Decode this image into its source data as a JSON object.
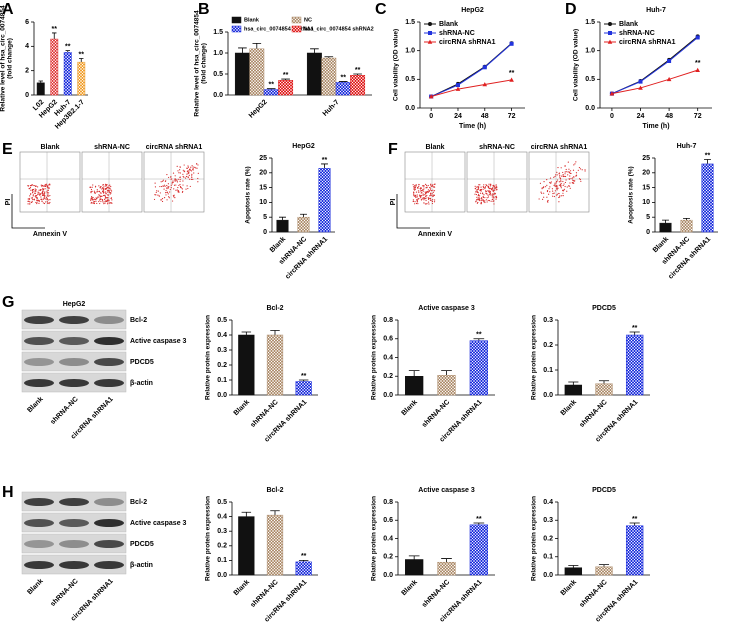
{
  "panel_letters": [
    "A",
    "B",
    "C",
    "D",
    "E",
    "F",
    "G",
    "H"
  ],
  "flow_panels": [
    {
      "labels": [
        "Blank",
        "shRNA-NC",
        "circRNA shRNA1"
      ],
      "x_label": "Annexin V",
      "y_label": "PI"
    },
    {
      "labels": [
        "Blank",
        "shRNA-NC",
        "circRNA shRNA1"
      ],
      "x_label": "Annexin V",
      "y_label": "PI"
    }
  ],
  "blots": [
    {
      "title": "HepG2",
      "proteins": [
        "Bcl-2",
        "Active caspase 3",
        "PDCD5",
        "β-actin"
      ],
      "lanes": [
        "Blank",
        "shRNA-NC",
        "circRNA shRNA1"
      ]
    },
    {
      "proteins": [
        "Bcl-2",
        "Active caspase 3",
        "PDCD5",
        "β-actin"
      ],
      "lanes": [
        "Blank",
        "shRNA-NC",
        "circRNA shRNA1"
      ]
    }
  ],
  "chart_data": [
    {
      "type": "bar",
      "y_label": [
        "Relative level of hsa_circ_0074854",
        "(fold change)"
      ],
      "categories": [
        "L02",
        "HepG2",
        "Huh-7",
        "Hep3B2.1-7"
      ],
      "values": [
        1.0,
        4.6,
        3.5,
        2.7
      ],
      "errors": [
        0.15,
        0.5,
        0.15,
        0.3
      ],
      "colors": [
        "#111111",
        "#e04040",
        "#2233dd",
        "#f0a030"
      ],
      "ylim": [
        0,
        6
      ],
      "yticks": [
        0,
        2,
        4,
        6
      ],
      "annotations": [
        {
          "category": "HepG2",
          "text": "**"
        },
        {
          "category": "Huh-7",
          "text": "**"
        },
        {
          "category": "Hep3B2.1-7",
          "text": "**"
        }
      ]
    },
    {
      "type": "bar",
      "y_label": [
        "Relative level of hsa_circ_0074854",
        "(fold change)"
      ],
      "categories": [
        "HepG2",
        "Huh-7"
      ],
      "series": [
        {
          "name": "Blank",
          "color": "#111111",
          "values": [
            1.0,
            1.0
          ],
          "errors": [
            0.12,
            0.1
          ]
        },
        {
          "name": "NC",
          "color": "#b09070",
          "values": [
            1.1,
            0.88
          ],
          "errors": [
            0.13,
            0.03
          ]
        },
        {
          "name": "hsa_circ_0074854 shRNA1",
          "color": "#2233dd",
          "values": [
            0.13,
            0.3
          ],
          "errors": [
            0.02,
            0.02
          ]
        },
        {
          "name": "hsa_circ_0074854 shRNA2",
          "color": "#e02020",
          "values": [
            0.35,
            0.47
          ],
          "errors": [
            0.03,
            0.03
          ]
        }
      ],
      "ylim": [
        0,
        1.5
      ],
      "yticks": [
        {
          "value": 0,
          "label": "0.0"
        },
        0.5,
        {
          "value": 1,
          "label": "1.0"
        },
        1.5
      ],
      "annotations": [
        {
          "category": "HepG2",
          "series": "hsa_circ_0074854 shRNA1",
          "text": "**"
        },
        {
          "category": "HepG2",
          "series": "hsa_circ_0074854 shRNA2",
          "text": "**"
        },
        {
          "category": "Huh-7",
          "series": "hsa_circ_0074854 shRNA1",
          "text": "**"
        },
        {
          "category": "Huh-7",
          "series": "hsa_circ_0074854 shRNA2",
          "text": "**"
        }
      ]
    },
    {
      "type": "line",
      "title": "HepG2",
      "x_label": "Time (h)",
      "y_label": "Cell viability (OD value)",
      "x": [
        0,
        24,
        48,
        72
      ],
      "xlim": [
        -10,
        84
      ],
      "xticks": [
        0,
        24,
        48,
        72
      ],
      "ylim": [
        0,
        1.5
      ],
      "yticks": [
        {
          "value": 0,
          "label": "0.0"
        },
        0.5,
        {
          "value": 1,
          "label": "1.0"
        },
        1.5
      ],
      "series": [
        {
          "name": "Blank",
          "color": "#111111",
          "marker": "circle",
          "values": [
            0.2,
            0.42,
            0.72,
            1.13
          ]
        },
        {
          "name": "shRNA-NC",
          "color": "#2233dd",
          "marker": "square",
          "values": [
            0.2,
            0.4,
            0.71,
            1.12
          ]
        },
        {
          "name": "circRNA shRNA1",
          "color": "#e02020",
          "marker": "triangle",
          "values": [
            0.2,
            0.33,
            0.41,
            0.49
          ]
        }
      ],
      "annotations": [
        {
          "x": 72,
          "series": "circRNA shRNA1",
          "text": "**"
        }
      ]
    },
    {
      "type": "line",
      "title": "Huh-7",
      "x_label": "Time (h)",
      "y_label": "Cell viability (OD value)",
      "x": [
        0,
        24,
        48,
        72
      ],
      "xlim": [
        -10,
        84
      ],
      "xticks": [
        0,
        24,
        48,
        72
      ],
      "ylim": [
        0,
        1.5
      ],
      "yticks": [
        {
          "value": 0,
          "label": "0.0"
        },
        0.5,
        {
          "value": 1,
          "label": "1.0"
        },
        1.5
      ],
      "series": [
        {
          "name": "Blank",
          "color": "#111111",
          "marker": "circle",
          "values": [
            0.25,
            0.47,
            0.84,
            1.25
          ]
        },
        {
          "name": "shRNA-NC",
          "color": "#2233dd",
          "marker": "square",
          "values": [
            0.25,
            0.46,
            0.82,
            1.23
          ]
        },
        {
          "name": "circRNA shRNA1",
          "color": "#e02020",
          "marker": "triangle",
          "values": [
            0.25,
            0.35,
            0.5,
            0.66
          ]
        }
      ],
      "annotations": [
        {
          "x": 72,
          "series": "circRNA shRNA1",
          "text": "**"
        }
      ]
    },
    {
      "type": "bar",
      "title": "HepG2",
      "y_label": "Apoptosis rate (%)",
      "categories": [
        "Blank",
        "shRNA-NC",
        "circRNA shRNA1"
      ],
      "values": [
        4,
        5,
        21.5
      ],
      "errors": [
        1,
        1,
        1.5
      ],
      "colors": [
        "#111111",
        "#b09070",
        "#2233dd"
      ],
      "ylim": [
        0,
        25
      ],
      "yticks": [
        0,
        5,
        10,
        15,
        20,
        25
      ],
      "annotations": [
        {
          "category": "circRNA shRNA1",
          "text": "**"
        }
      ]
    },
    {
      "type": "bar",
      "title": "Huh-7",
      "y_label": "Apoptosis rate (%)",
      "categories": [
        "Blank",
        "shRNA-NC",
        "circRNA shRNA1"
      ],
      "values": [
        3,
        4,
        23
      ],
      "errors": [
        1,
        0.6,
        1.5
      ],
      "colors": [
        "#111111",
        "#b09070",
        "#2233dd"
      ],
      "ylim": [
        0,
        25
      ],
      "yticks": [
        0,
        5,
        10,
        15,
        20,
        25
      ],
      "annotations": [
        {
          "category": "circRNA shRNA1",
          "text": "**"
        }
      ]
    },
    {
      "type": "bar",
      "title": "Bcl-2",
      "y_label": "Relative protein expression",
      "categories": [
        "Blank",
        "shRNA-NC",
        "circRNA shRNA1"
      ],
      "values": [
        0.4,
        0.4,
        0.09
      ],
      "errors": [
        0.02,
        0.03,
        0.01
      ],
      "colors": [
        "#111111",
        "#b09070",
        "#2233dd"
      ],
      "ylim": [
        0,
        0.5
      ],
      "yticks": [
        {
          "value": 0,
          "label": "0.0"
        },
        0.1,
        0.2,
        0.3,
        0.4,
        0.5
      ],
      "annotations": [
        {
          "category": "circRNA shRNA1",
          "text": "**"
        }
      ]
    },
    {
      "type": "bar",
      "title": "Active caspase 3",
      "y_label": "Relative protein expression",
      "categories": [
        "Blank",
        "shRNA-NC",
        "circRNA shRNA1"
      ],
      "values": [
        0.2,
        0.21,
        0.58
      ],
      "errors": [
        0.06,
        0.05,
        0.02
      ],
      "colors": [
        "#111111",
        "#b09070",
        "#2233dd"
      ],
      "ylim": [
        0,
        0.8
      ],
      "yticks": [
        {
          "value": 0,
          "label": "0.0"
        },
        0.2,
        0.4,
        0.6,
        0.8
      ],
      "annotations": [
        {
          "category": "circRNA shRNA1",
          "text": "**"
        }
      ]
    },
    {
      "type": "bar",
      "title": "PDCD5",
      "y_label": "Relative protein expression",
      "categories": [
        "Blank",
        "shRNA-NC",
        "circRNA shRNA1"
      ],
      "values": [
        0.04,
        0.045,
        0.24
      ],
      "errors": [
        0.012,
        0.012,
        0.012
      ],
      "colors": [
        "#111111",
        "#b09070",
        "#2233dd"
      ],
      "ylim": [
        0,
        0.3
      ],
      "yticks": [
        {
          "value": 0,
          "label": "0.0"
        },
        0.1,
        0.2,
        0.3
      ],
      "annotations": [
        {
          "category": "circRNA shRNA1",
          "text": "**"
        }
      ]
    },
    {
      "type": "bar",
      "title": "Bcl-2",
      "y_label": "Relative protein expression",
      "categories": [
        "Blank",
        "shRNA-NC",
        "circRNA shRNA1"
      ],
      "values": [
        0.4,
        0.41,
        0.09
      ],
      "errors": [
        0.03,
        0.03,
        0.01
      ],
      "colors": [
        "#111111",
        "#b09070",
        "#2233dd"
      ],
      "ylim": [
        0,
        0.5
      ],
      "yticks": [
        {
          "value": 0,
          "label": "0.0"
        },
        0.1,
        0.2,
        0.3,
        0.4,
        0.5
      ],
      "annotations": [
        {
          "category": "circRNA shRNA1",
          "text": "**"
        }
      ]
    },
    {
      "type": "bar",
      "title": "Active caspase 3",
      "y_label": "Relative protein expression",
      "categories": [
        "Blank",
        "shRNA-NC",
        "circRNA shRNA1"
      ],
      "values": [
        0.17,
        0.14,
        0.55
      ],
      "errors": [
        0.04,
        0.04,
        0.02
      ],
      "colors": [
        "#111111",
        "#b09070",
        "#2233dd"
      ],
      "ylim": [
        0,
        0.8
      ],
      "yticks": [
        {
          "value": 0,
          "label": "0.0"
        },
        0.2,
        0.4,
        0.6,
        0.8
      ],
      "annotations": [
        {
          "category": "circRNA shRNA1",
          "text": "**"
        }
      ]
    },
    {
      "type": "bar",
      "title": "PDCD5",
      "y_label": "Relative protein expression",
      "categories": [
        "Blank",
        "shRNA-NC",
        "circRNA shRNA1"
      ],
      "values": [
        0.04,
        0.045,
        0.27
      ],
      "errors": [
        0.012,
        0.012,
        0.015
      ],
      "colors": [
        "#111111",
        "#b09070",
        "#2233dd"
      ],
      "ylim": [
        0,
        0.4
      ],
      "yticks": [
        {
          "value": 0,
          "label": "0.0"
        },
        0.1,
        0.2,
        0.3,
        0.4
      ],
      "annotations": [
        {
          "category": "circRNA shRNA1",
          "text": "**"
        }
      ]
    }
  ]
}
